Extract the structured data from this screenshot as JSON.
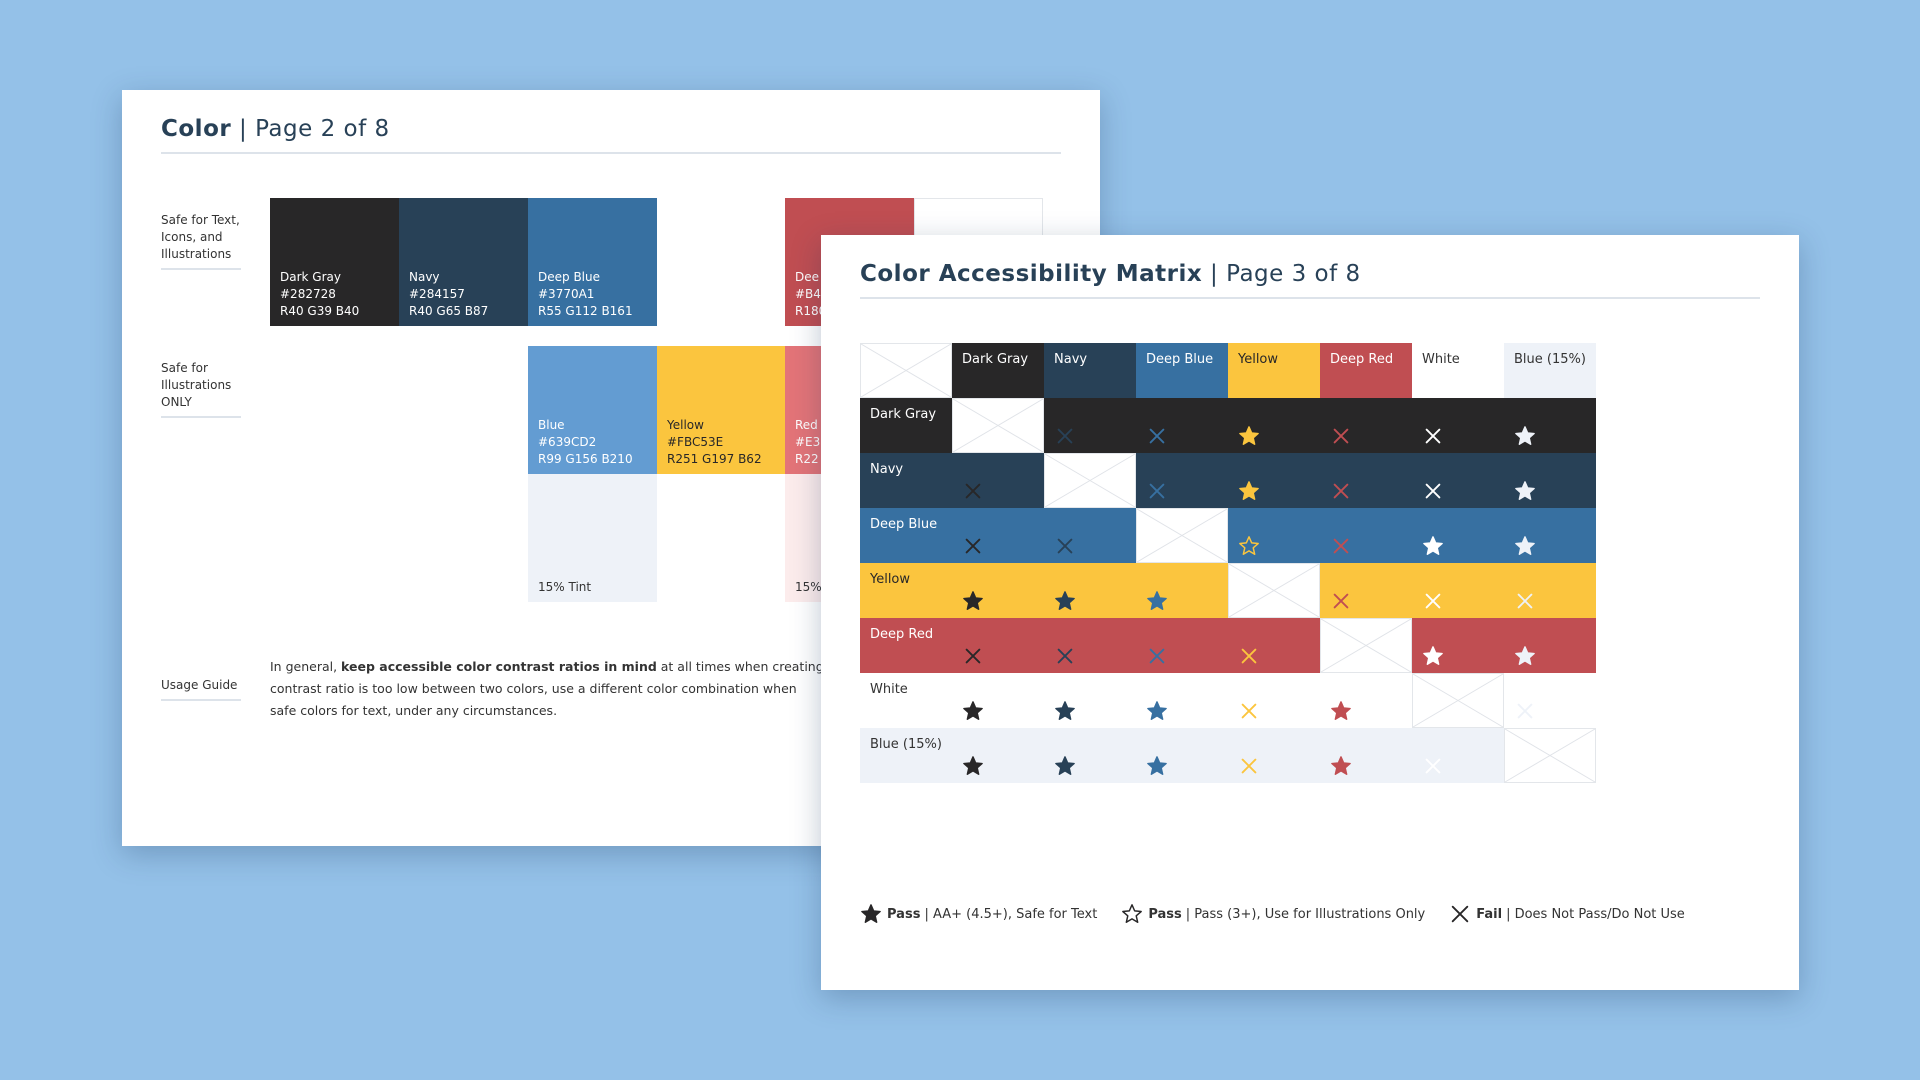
{
  "colors": {
    "dark_gray": "#282728",
    "navy": "#284157",
    "deep_blue": "#3770A1",
    "blue": "#639CD2",
    "yellow": "#FBC53E",
    "deep_red": "#C04E52",
    "red": "#E37478",
    "white": "#ffffff",
    "blue_tint": "#EEF2F8",
    "red_tint": "#FCECEC",
    "background": "#94c1e8"
  },
  "page2": {
    "title_strong": "Color",
    "separator": "|",
    "page_num": "Page 2 of 8",
    "section_safe_all": "Safe for Text,\nIcons, and\nIllustrations",
    "section_safe_illus": "Safe for\nIllustrations\nONLY",
    "section_usage": "Usage Guide",
    "swatches_primary": [
      {
        "name": "Dark Gray",
        "hex": "#282728",
        "rgb": "R40 G39 B40"
      },
      {
        "name": "Navy",
        "hex": "#284157",
        "rgb": "R40 G65 B87"
      },
      {
        "name": "Deep Blue",
        "hex": "#3770A1",
        "rgb": "R55 G112 B161"
      },
      {
        "name": "Dee",
        "hex": "#B4",
        "rgb": "R180"
      }
    ],
    "swatches_secondary": [
      {
        "name": "Blue",
        "hex": "#639CD2",
        "rgb": "R99 G156 B210"
      },
      {
        "name": "Yellow",
        "hex": "#FBC53E",
        "rgb": "R251 G197 B62"
      },
      {
        "name": "Red",
        "hex": "#E3",
        "rgb": "R22"
      }
    ],
    "tint_label": "15% Tint",
    "tint_label_partial": "15%",
    "usage_pre": "In general, ",
    "usage_bold": "keep accessible color contrast ratios in mind",
    "usage_post": " at all times when creating",
    "usage_line2": "contrast ratio is too low between two colors, use a different color combination when",
    "usage_line3": "safe colors for text, under any circumstances."
  },
  "page3": {
    "title_strong": "Color Accessibility Matrix",
    "separator": "|",
    "page_num": "Page 3 of 8",
    "matrix": {
      "labels": [
        "Dark Gray",
        "Navy",
        "Deep Blue",
        "Yellow",
        "Deep Red",
        "White",
        "Blue (15%)"
      ],
      "cells": [
        [
          "-",
          "fail",
          "fail",
          "star",
          "fail",
          "fail",
          "star"
        ],
        [
          "fail",
          "-",
          "fail",
          "star",
          "fail",
          "fail",
          "star"
        ],
        [
          "fail",
          "fail",
          "-",
          "outline",
          "fail",
          "star",
          "star"
        ],
        [
          "star",
          "star",
          "star",
          "-",
          "fail",
          "fail",
          "fail"
        ],
        [
          "fail",
          "fail",
          "fail",
          "fail",
          "-",
          "star",
          "star"
        ],
        [
          "star",
          "star",
          "star",
          "fail",
          "star",
          "-",
          "fail"
        ],
        [
          "star",
          "star",
          "star",
          "fail",
          "star",
          "fail",
          "-"
        ]
      ]
    },
    "legend": [
      {
        "icon": "filled-star-icon",
        "bold": "Pass",
        "text": "| AA+ (4.5+), Safe for Text"
      },
      {
        "icon": "outline-star-icon",
        "bold": "Pass",
        "text": "| Pass (3+), Use for Illustrations Only"
      },
      {
        "icon": "x-icon",
        "bold": "Fail",
        "text": "| Does Not Pass/Do Not Use"
      }
    ]
  }
}
